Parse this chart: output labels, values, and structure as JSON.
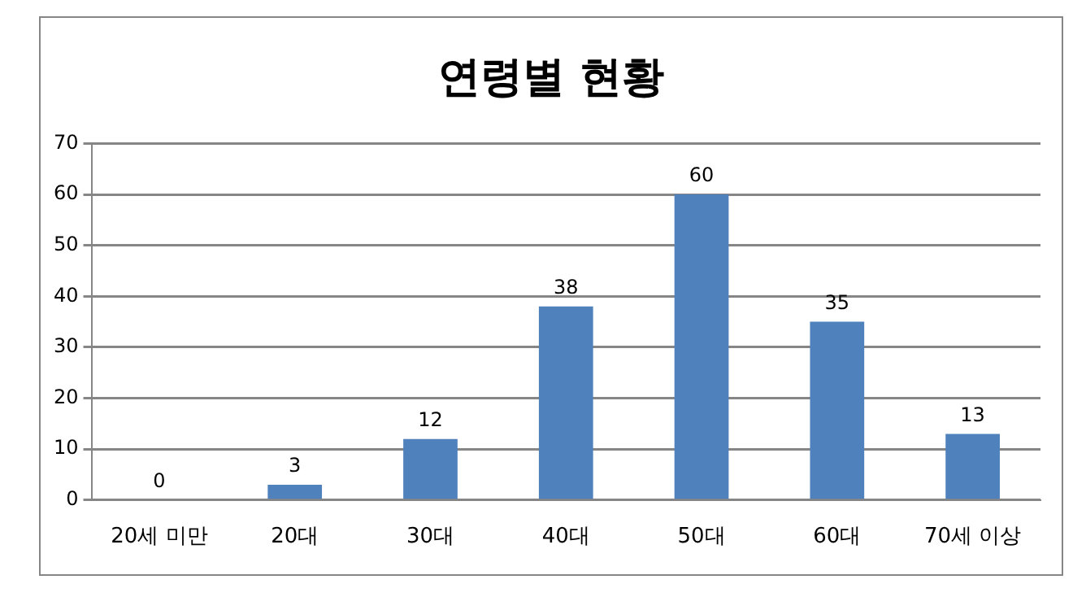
{
  "chart_data": {
    "type": "bar",
    "title": "연령별 현황",
    "categories": [
      "20세 미만",
      "20대",
      "30대",
      "40대",
      "50대",
      "60대",
      "70세 이상"
    ],
    "values": [
      0,
      3,
      12,
      38,
      60,
      35,
      13
    ],
    "color": "#4f81bd",
    "ylim": [
      0,
      70
    ],
    "yticks": [
      0,
      10,
      20,
      30,
      40,
      50,
      60,
      70
    ],
    "grid": "y",
    "legend": false,
    "data_labels": true
  }
}
